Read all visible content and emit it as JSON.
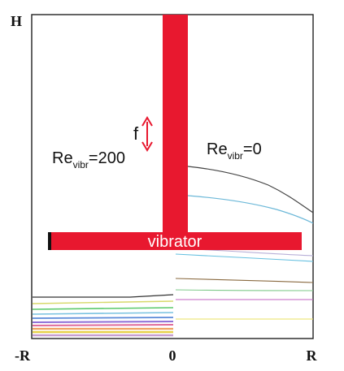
{
  "labels": {
    "h_axis": "H",
    "r_neg": "-R",
    "zero": "0",
    "r_pos": "R",
    "freq": "f",
    "re_left_main": "Re",
    "re_left_sub": "vibr",
    "re_left_value": "=200",
    "re_right_main": "Re",
    "re_right_sub": "vibr",
    "re_right_value": "=0",
    "vibrator": "vibrator"
  },
  "colors": {
    "vibrator": "#e8182f",
    "axis": "#222222",
    "arrow": "#e8182f"
  }
}
